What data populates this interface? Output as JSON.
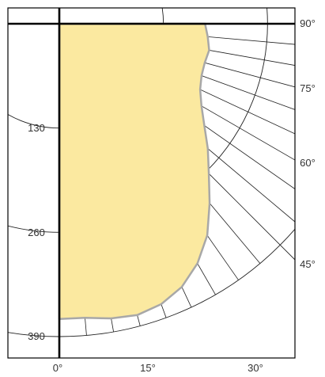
{
  "colors": {
    "fill": "#fbe9a0",
    "outline": "#a8a8a8",
    "grid": "#1f1f1f",
    "axis": "#000000",
    "text": "#333333"
  },
  "chart_data": {
    "type": "polar",
    "title": "",
    "radial_unit": "",
    "radial_ticks": [
      "130",
      "260",
      "390"
    ],
    "radial_max": 390,
    "angle_ticks": [
      "0°",
      "15°",
      "30°",
      "45°",
      "60°",
      "75°",
      "90°"
    ],
    "spoke_angles_deg": [
      5,
      10,
      15,
      20,
      25,
      30,
      35,
      40,
      45,
      50,
      55,
      60,
      65,
      70,
      75,
      80,
      85
    ],
    "curve": {
      "angle_deg": [
        0,
        5,
        10,
        15,
        20,
        25,
        30,
        35,
        40,
        45,
        50,
        55,
        60,
        65,
        70,
        75,
        80,
        85,
        90
      ],
      "r": [
        368,
        368,
        373,
        376,
        372,
        362,
        345,
        322,
        292,
        264,
        242,
        221,
        205,
        194,
        189,
        188,
        190,
        186,
        182
      ]
    }
  }
}
